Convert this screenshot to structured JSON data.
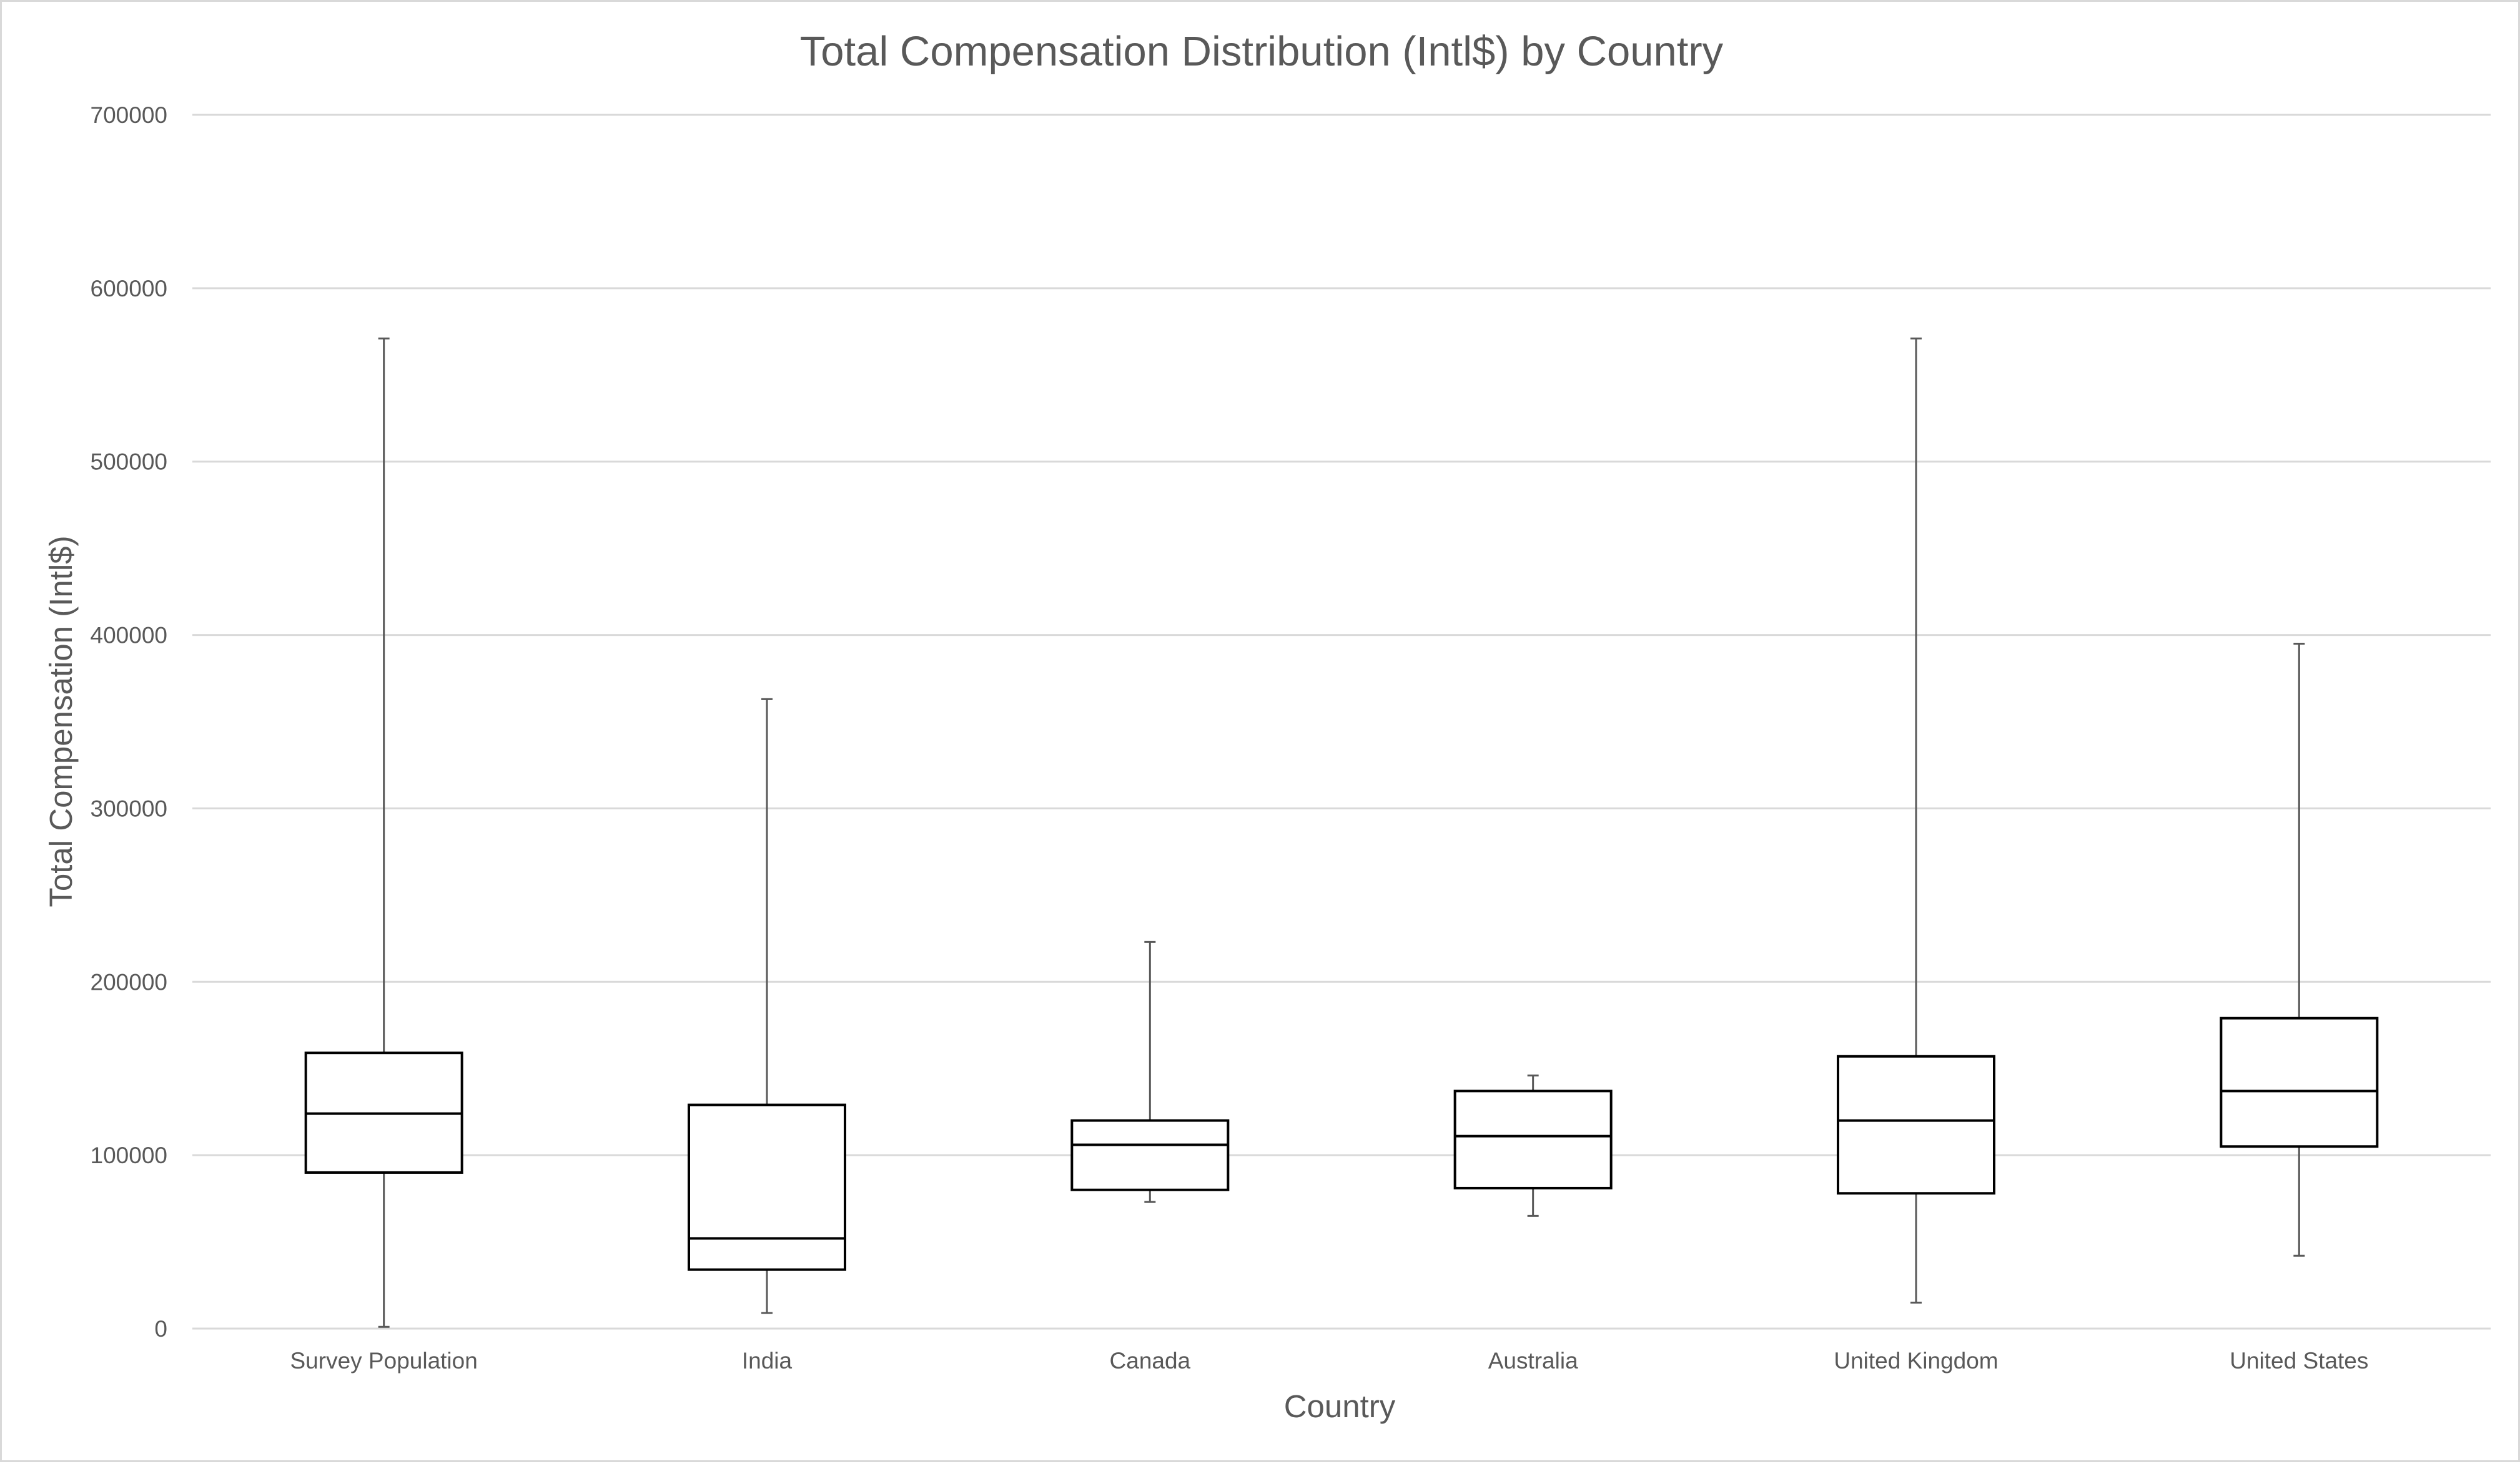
{
  "chart_data": {
    "type": "boxplot",
    "title": "Total Compensation Distribution (Intl$) by Country",
    "xlabel": "Country",
    "ylabel": "Total Compensation (Intl$)",
    "ylim": [
      0,
      700000
    ],
    "yticks": [
      0,
      100000,
      200000,
      300000,
      400000,
      500000,
      600000,
      700000
    ],
    "grid": true,
    "legend": "none",
    "categories": [
      "Survey Population",
      "India",
      "Canada",
      "Australia",
      "United Kingdom",
      "United States"
    ],
    "boxes": [
      {
        "category": "Survey Population",
        "min": 1000,
        "q1": 90000,
        "median": 124000,
        "q3": 159000,
        "max": 571000
      },
      {
        "category": "India",
        "min": 9000,
        "q1": 34000,
        "median": 52000,
        "q3": 129000,
        "max": 363000
      },
      {
        "category": "Canada",
        "min": 73000,
        "q1": 80000,
        "median": 106000,
        "q3": 120000,
        "max": 223000
      },
      {
        "category": "Australia",
        "min": 65000,
        "q1": 81000,
        "median": 111000,
        "q3": 137000,
        "max": 146000
      },
      {
        "category": "United Kingdom",
        "min": 15000,
        "q1": 78000,
        "median": 120000,
        "q3": 157000,
        "max": 571000
      },
      {
        "category": "United States",
        "min": 42000,
        "q1": 105000,
        "median": 137000,
        "q3": 179000,
        "max": 395000
      }
    ],
    "colors": {
      "box_stroke": "#000000",
      "box_fill": "#ffffff",
      "whisker": "#595959",
      "grid": "#d9d9d9",
      "text": "#595959"
    }
  }
}
